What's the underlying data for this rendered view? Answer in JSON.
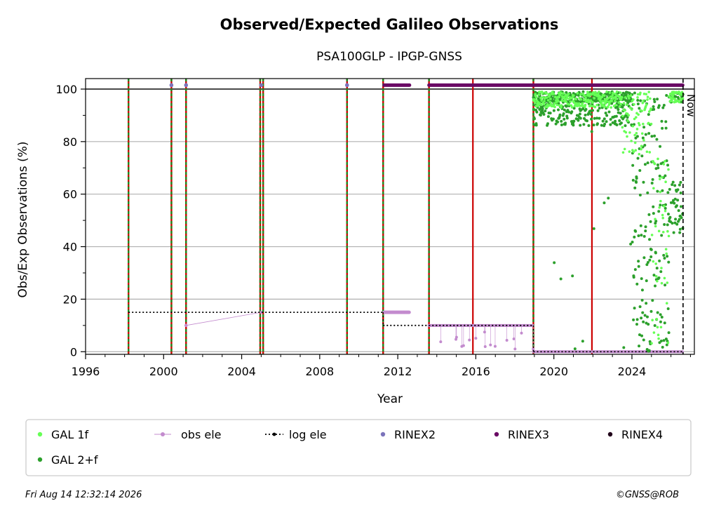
{
  "chart_data": {
    "type": "scatter",
    "title": "Observed/Expected Galileo Observations",
    "subtitle": "PSA100GLP - IPGP-GNSS",
    "xlabel": "Year",
    "ylabel": "Obs/Exp Observations (%)",
    "xlim": [
      1996,
      2027.2
    ],
    "ylim": [
      -1,
      104
    ],
    "x_ticks": [
      1996,
      2000,
      2004,
      2008,
      2012,
      2016,
      2020,
      2024
    ],
    "y_ticks": [
      0,
      20,
      40,
      60,
      80,
      100
    ],
    "grid": "horizontal",
    "now_label": "Now",
    "now_x": 2026.62,
    "reference_line_y": 100,
    "colors": {
      "gal_1f": "#66ff55",
      "gal_2f": "#2ca02c",
      "obs_ele": "#c38bce",
      "log_ele": "#000000",
      "rinex2": "#7b73bb",
      "rinex3": "#6a0a64",
      "rinex4": "#20001a",
      "red_event": "#cc0000",
      "green_event": "#1f8a1f",
      "grid": "#b0b0b0"
    },
    "event_lines_red_green": [
      1998.2,
      2000.4,
      2001.15,
      2004.95,
      2005.1,
      2009.4,
      2011.25,
      2013.6,
      2018.95
    ],
    "event_lines_red": [
      2015.85,
      2021.95
    ],
    "log_ele_segments": [
      {
        "x": [
          1998.2,
          2011.25
        ],
        "y": 15
      },
      {
        "x": [
          2011.25,
          2018.95
        ],
        "y": 10
      },
      {
        "x": [
          2018.95,
          2026.62
        ],
        "y": 0
      }
    ],
    "rinex2_points": [
      2000.4,
      2001.15,
      2005.0,
      2009.4
    ],
    "rinex3_segments": [
      [
        2011.3,
        2012.6
      ],
      [
        2013.6,
        2026.6
      ]
    ],
    "series": [
      {
        "name": "GAL 1f",
        "description": "scattered daily values, mostly 90-99% from late 2018, dropping to 0-60% during 2024-2026"
      },
      {
        "name": "GAL 2+f",
        "description": "scattered daily values, mostly 85-98% from late 2018, heavy scatter 0-99% during 2024-2026"
      },
      {
        "name": "obs ele",
        "values_by_period": [
          {
            "x": [
              2001.15,
              2005.0
            ],
            "y": [
              10,
              15
            ]
          },
          {
            "x": [
              2011.3,
              2012.6
            ],
            "y": 15
          },
          {
            "x": [
              2013.6,
              2018.95
            ],
            "y": 10
          },
          {
            "x": [
              2018.95,
              2026.62
            ],
            "y": 0
          }
        ]
      },
      {
        "name": "log ele"
      },
      {
        "name": "RINEX2"
      },
      {
        "name": "RINEX3"
      },
      {
        "name": "RINEX4"
      }
    ],
    "legend": [
      {
        "label": "GAL 1f",
        "kind": "dot",
        "color": "#66ff55"
      },
      {
        "label": "obs ele",
        "kind": "line-dot",
        "color": "#c38bce"
      },
      {
        "label": "log ele",
        "kind": "dotted-line",
        "color": "#000000"
      },
      {
        "label": "RINEX2",
        "kind": "dot",
        "color": "#7b73bb"
      },
      {
        "label": "RINEX3",
        "kind": "dot",
        "color": "#6a0a64"
      },
      {
        "label": "RINEX4",
        "kind": "dot",
        "color": "#20001a"
      },
      {
        "label": "GAL 2+f",
        "kind": "dot",
        "color": "#2ca02c"
      }
    ],
    "legend_placement": "below"
  },
  "footer": {
    "timestamp": "Fri Aug 14 12:32:14 2026",
    "credit": "©GNSS@ROB"
  }
}
